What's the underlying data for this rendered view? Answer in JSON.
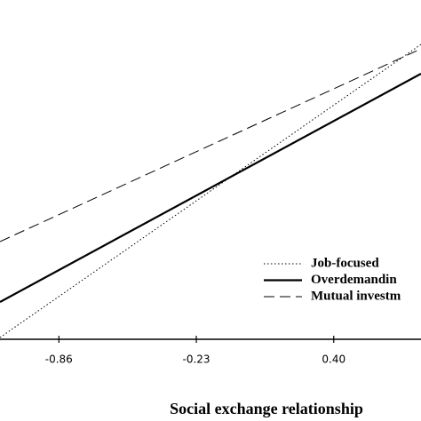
{
  "chart_data": {
    "type": "line",
    "x_label": "Social exchange relationship",
    "x": [
      -1.13,
      0.8
    ],
    "xlim": [
      -1.13,
      0.8
    ],
    "xticks": [
      -0.86,
      -0.23,
      {
        "value": 0.4,
        "label": "0.40"
      }
    ],
    "ylim": [
      0,
      3.82
    ],
    "series": [
      {
        "name": "Job-focused",
        "color": "#000000",
        "style": "dotted",
        "values": [
          0.02,
          3.32
        ]
      },
      {
        "name": "Overdemandin",
        "color": "#000000",
        "style": "solid",
        "values": [
          0.42,
          2.99
        ]
      },
      {
        "name": "Mutual investm",
        "color": "#000000",
        "style": "dashed",
        "values": [
          1.1,
          3.27
        ]
      }
    ]
  }
}
